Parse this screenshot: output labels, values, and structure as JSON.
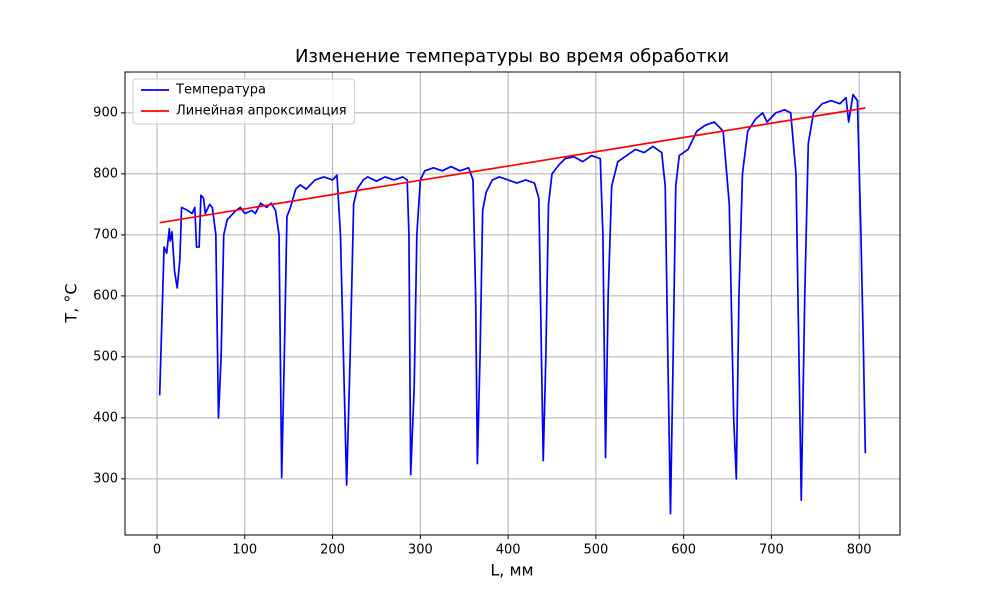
{
  "chart_data": {
    "type": "line",
    "title": "Изменение температуры во время обработки",
    "xlabel": "L, мм",
    "ylabel": "T, °C",
    "xlim": [
      -36.5,
      846.5
    ],
    "ylim": [
      208,
      967
    ],
    "xticks": [
      0,
      100,
      200,
      300,
      400,
      500,
      600,
      700,
      800
    ],
    "yticks": [
      300,
      400,
      500,
      600,
      700,
      800,
      900
    ],
    "grid": true,
    "legend": "upper left",
    "series": [
      {
        "name": "Температура",
        "color": "#0000ff",
        "x": [
          3,
          8,
          11,
          14,
          15,
          17,
          20,
          23,
          26,
          28,
          35,
          40,
          43,
          45,
          48,
          50,
          53,
          55,
          60,
          63,
          67,
          70,
          73,
          76,
          80,
          90,
          95,
          100,
          108,
          112,
          118,
          125,
          130,
          135,
          139,
          142,
          145,
          148,
          152,
          158,
          163,
          170,
          180,
          190,
          200,
          205,
          209,
          216,
          220,
          224,
          228,
          235,
          240,
          250,
          260,
          270,
          280,
          285,
          287,
          289,
          293,
          296,
          300,
          305,
          315,
          325,
          335,
          345,
          355,
          360,
          363,
          365,
          368,
          371,
          375,
          382,
          390,
          400,
          410,
          420,
          430,
          435,
          438,
          440,
          443,
          446,
          450,
          458,
          465,
          475,
          485,
          495,
          505,
          508,
          511,
          514,
          518,
          525,
          535,
          545,
          555,
          565,
          575,
          579,
          582,
          585,
          588,
          591,
          595,
          605,
          615,
          625,
          635,
          645,
          652,
          657,
          660,
          663,
          667,
          673,
          682,
          690,
          695,
          705,
          715,
          722,
          728,
          734,
          738,
          742,
          748,
          758,
          768,
          778,
          785,
          788,
          793,
          798,
          802,
          805,
          807
        ],
        "values": [
          437,
          680,
          670,
          710,
          690,
          705,
          640,
          613,
          660,
          745,
          740,
          735,
          745,
          680,
          680,
          765,
          760,
          735,
          750,
          745,
          700,
          400,
          500,
          700,
          725,
          740,
          745,
          735,
          740,
          735,
          752,
          745,
          752,
          740,
          700,
          302,
          500,
          730,
          745,
          775,
          782,
          775,
          790,
          795,
          790,
          798,
          700,
          290,
          500,
          750,
          775,
          790,
          795,
          788,
          795,
          790,
          795,
          790,
          700,
          307,
          450,
          700,
          790,
          805,
          810,
          805,
          812,
          805,
          810,
          790,
          600,
          325,
          500,
          740,
          770,
          790,
          795,
          790,
          785,
          790,
          785,
          760,
          500,
          330,
          500,
          750,
          800,
          815,
          825,
          828,
          820,
          830,
          825,
          700,
          335,
          600,
          780,
          820,
          830,
          840,
          835,
          845,
          835,
          780,
          500,
          243,
          500,
          780,
          830,
          840,
          870,
          880,
          885,
          870,
          750,
          400,
          300,
          600,
          800,
          870,
          890,
          900,
          885,
          900,
          905,
          900,
          800,
          265,
          600,
          850,
          900,
          915,
          920,
          915,
          925,
          885,
          930,
          920,
          700,
          500,
          342
        ]
      },
      {
        "name": "Линейная апроксимация",
        "color": "#ff0000",
        "x": [
          3,
          807
        ],
        "values": [
          720,
          908
        ]
      }
    ]
  }
}
